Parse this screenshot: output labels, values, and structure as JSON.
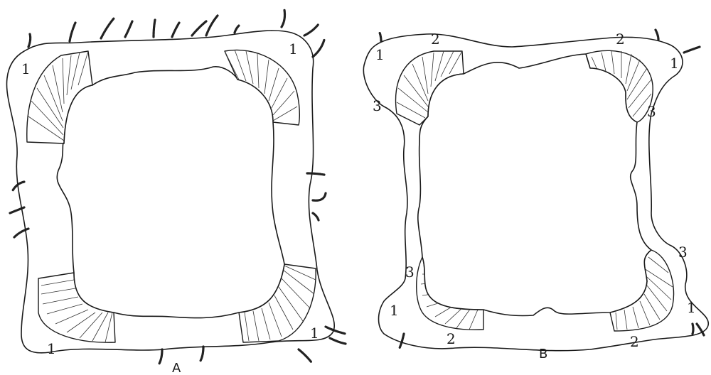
{
  "figure": {
    "panels": [
      {
        "id": "A",
        "label": "A",
        "region_labels": [
          "1",
          "1",
          "1",
          "1"
        ]
      },
      {
        "id": "B",
        "label": "B",
        "region_labels": [
          "1",
          "1",
          "1",
          "1",
          "2",
          "2",
          "2",
          "2",
          "3",
          "3",
          "3",
          "3"
        ]
      }
    ],
    "line_color": "#1a1a1a",
    "background_color": "#ffffff"
  }
}
